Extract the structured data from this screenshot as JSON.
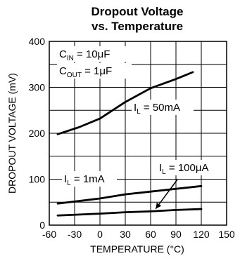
{
  "chart_data": {
    "type": "line",
    "title_line1": "Dropout Voltage",
    "title_line2": "vs. Temperature",
    "xlabel": "TEMPERATURE (°C)",
    "ylabel": "DROPOUT VOLTAGE (mV)",
    "xlim": [
      -60,
      150
    ],
    "ylim": [
      0,
      400
    ],
    "x_ticks": [
      -60,
      -30,
      0,
      30,
      60,
      90,
      120,
      150
    ],
    "x_tick_labels": [
      "-60",
      "-30",
      "0",
      "30",
      "60",
      "90",
      "120",
      "150"
    ],
    "y_ticks": [
      0,
      100,
      200,
      300,
      400
    ],
    "y_tick_labels": [
      "0",
      "100",
      "200",
      "300",
      "400"
    ],
    "grid": true,
    "conditions": {
      "cin": {
        "prefix": "C",
        "sub": "IN",
        "text": " = 10μF"
      },
      "cout": {
        "prefix": "C",
        "sub": "OUT",
        "text": " = 1μF"
      }
    },
    "series": [
      {
        "name": "IL = 50mA",
        "label_prefix": "I",
        "label_sub": "L",
        "label_text": " = 50mA",
        "color": "#000000",
        "x": [
          -50,
          -25,
          0,
          30,
          60,
          90,
          110
        ],
        "values": [
          198,
          213,
          232,
          268,
          298,
          318,
          333
        ]
      },
      {
        "name": "IL = 1mA",
        "label_prefix": "I",
        "label_sub": "L",
        "label_text": " = 1mA",
        "color": "#000000",
        "x": [
          -50,
          0,
          30,
          60,
          90,
          120
        ],
        "values": [
          47,
          58,
          67,
          73,
          79,
          85
        ]
      },
      {
        "name": "IL = 100μA",
        "label_prefix": "I",
        "label_sub": "L",
        "label_text": " = 100μA",
        "color": "#000000",
        "x": [
          -50,
          0,
          30,
          60,
          90,
          120
        ],
        "values": [
          21,
          25,
          28,
          30,
          33,
          35
        ]
      }
    ]
  }
}
